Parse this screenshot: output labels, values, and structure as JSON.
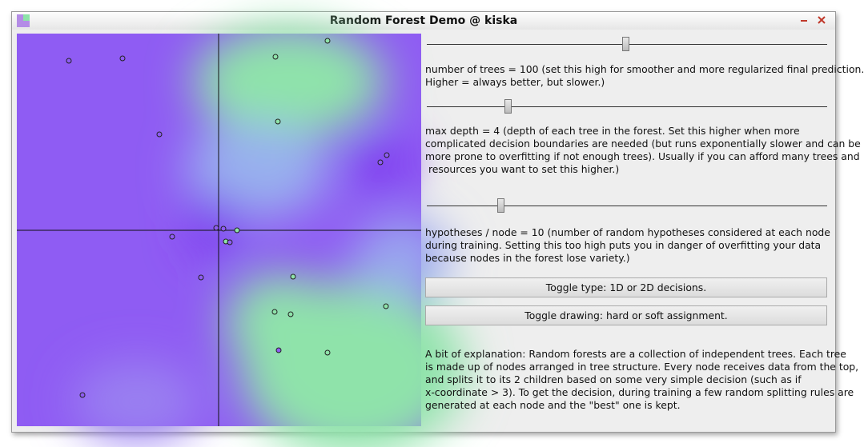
{
  "window": {
    "title": "Random Forest Demo @ kiska"
  },
  "controls": {
    "trees": {
      "lines": [
        "number of trees = 100 (set this high for smoother and more regularized final prediction.",
        "Higher = always better, but slower.)"
      ]
    },
    "depth": {
      "lines": [
        "max depth = 4 (depth of each tree in the forest. Set this higher when more",
        "complicated decision boundaries are needed (but runs exponentially slower and can be",
        "more prone to overfitting if not enough trees). Usually if you can afford many trees and",
        " resources you want to set this higher.)"
      ]
    },
    "hypotheses": {
      "lines": [
        "hypotheses / node = 10 (number of random hypotheses considered at each node",
        "during training. Setting this too high puts you in danger of overfitting your data",
        "because nodes in the forest lose variety.)"
      ]
    },
    "buttons": [
      "Toggle type: 1D or 2D decisions.",
      "Toggle drawing: hard or soft assignment."
    ],
    "explanation": [
      "A bit of explanation: Random forests are a collection of independent trees. Each tree",
      "is made up of nodes arranged in tree structure. Every node receives data from the top,",
      "and splits it to its 2 children based on some very simple decision (such as if",
      "x-coordinate > 3). To get the decision, during training a few random splitting rules are",
      "generated at each node and the \"best\" one is kept."
    ]
  }
}
